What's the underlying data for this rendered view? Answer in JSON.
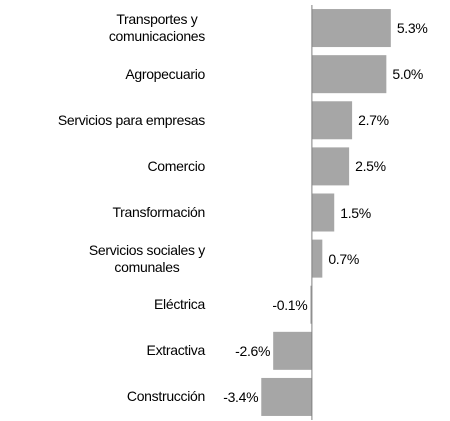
{
  "chart_data": {
    "type": "bar",
    "orientation": "horizontal",
    "categories": [
      "Transportes y\ncomunicaciones",
      "Agropecuario",
      "Servicios para empresas",
      "Comercio",
      "Transformación",
      "Servicios sociales y\ncomunales",
      "Eléctrica",
      "Extractiva",
      "Construcción"
    ],
    "values": [
      5.3,
      5.0,
      2.7,
      2.5,
      1.5,
      0.7,
      -0.1,
      -2.6,
      -3.4
    ],
    "value_labels": [
      "5.3%",
      "5.0%",
      "2.7%",
      "2.5%",
      "1.5%",
      "0.7%",
      "-0.1%",
      "-2.6%",
      "-3.4%"
    ],
    "color": "#a6a6a6",
    "xlim": [
      -5.5,
      8.2
    ]
  }
}
